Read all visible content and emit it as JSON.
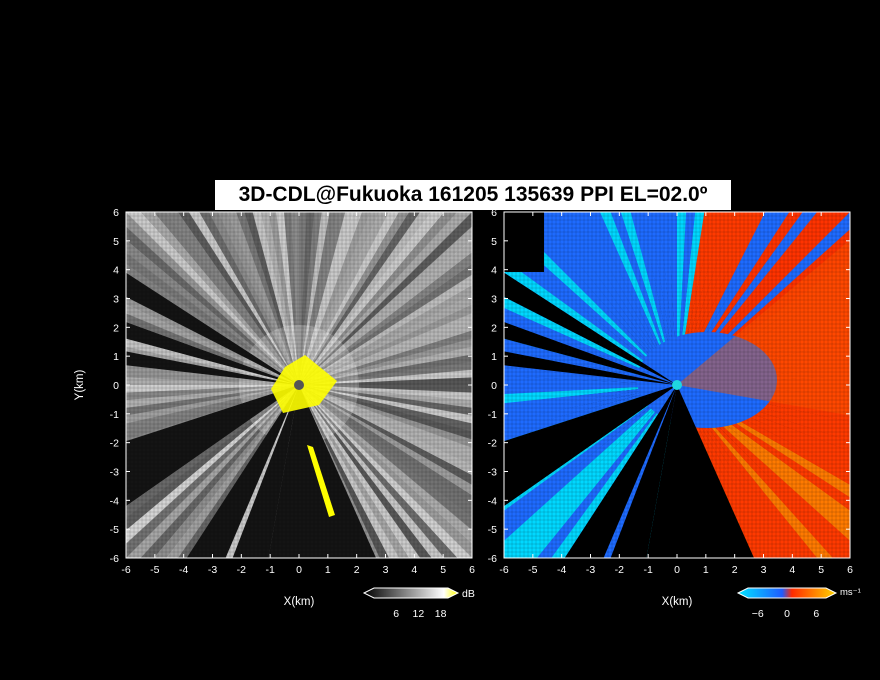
{
  "title": "3D-CDL@Fukuoka 161205 135639 PPI EL=02.0º",
  "chart_data": [
    {
      "type": "heatmap",
      "panel": "left",
      "product": "signal strength",
      "xlabel": "X(km)",
      "ylabel": "Y(km)",
      "xlim": [
        -6,
        6
      ],
      "ylim": [
        -6,
        6
      ],
      "xticks": [
        "-6",
        "-5",
        "-4",
        "-3",
        "-2",
        "-1",
        "0",
        "1",
        "2",
        "3",
        "4",
        "5",
        "6"
      ],
      "yticks": [
        "-6",
        "-5",
        "-4",
        "-3",
        "-2",
        "-1",
        "0",
        "1",
        "2",
        "3",
        "4",
        "5",
        "6"
      ],
      "colorbar": {
        "unit": "dB",
        "ticks": [
          "6",
          "12",
          "18"
        ],
        "range": [
          0,
          20
        ],
        "colors": [
          "#000000",
          "#ffffff",
          "#ffff00"
        ]
      }
    },
    {
      "type": "heatmap",
      "panel": "right",
      "product": "radial velocity",
      "xlabel": "X(km)",
      "ylabel": "",
      "xlim": [
        -6,
        6
      ],
      "ylim": [
        -6,
        6
      ],
      "xticks": [
        "-6",
        "-5",
        "-4",
        "-3",
        "-2",
        "-1",
        "0",
        "1",
        "2",
        "3",
        "4",
        "5",
        "6"
      ],
      "yticks": [
        "-6",
        "-5",
        "-4",
        "-3",
        "-2",
        "-1",
        "0",
        "1",
        "2",
        "3",
        "4",
        "5",
        "6"
      ],
      "colorbar": {
        "unit": "ms⁻¹",
        "ticks": [
          "−6",
          "0",
          "6"
        ],
        "range": [
          -8,
          8
        ],
        "colors": [
          "#00e5ff",
          "#1e5cff",
          "#ff2a00",
          "#ffd400"
        ]
      }
    }
  ]
}
